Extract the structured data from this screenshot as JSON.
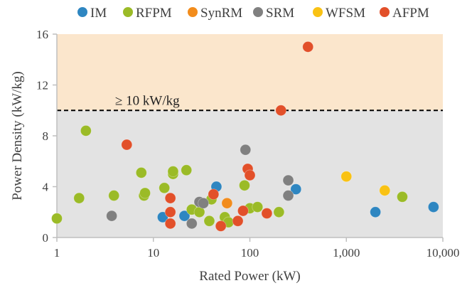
{
  "chart_data": {
    "type": "scatter",
    "xlabel": "Rated Power (kW)",
    "ylabel": "Power Density (kW/kg)",
    "x_scale": "log",
    "xlim": [
      1,
      10000
    ],
    "ylim": [
      0,
      16
    ],
    "x_ticks": [
      1,
      10,
      100,
      1000,
      10000
    ],
    "x_tick_labels": [
      "1",
      "10",
      "100",
      "1,000",
      "10,000"
    ],
    "y_ticks": [
      0,
      4,
      8,
      12,
      16
    ],
    "y_tick_labels": [
      "0",
      "4",
      "8",
      "12",
      "16"
    ],
    "grid": false,
    "legend_position": "top",
    "regions": [
      {
        "y_from": 10,
        "y_to": 16,
        "color": "#fbe6cc"
      },
      {
        "y_from": 0,
        "y_to": 10,
        "color": "#e3e3e3"
      }
    ],
    "threshold": {
      "y": 10,
      "label": "≥ 10 kW/kg",
      "style": "dashed",
      "color": "#000000"
    },
    "series": [
      {
        "name": "IM",
        "color": "#2e86c1",
        "points": [
          [
            12.5,
            1.6
          ],
          [
            21,
            1.7
          ],
          [
            45,
            4.0
          ],
          [
            300,
            3.8
          ],
          [
            2000,
            2.0
          ],
          [
            8000,
            2.4
          ]
        ]
      },
      {
        "name": "RFPM",
        "color": "#9bbb27",
        "points": [
          [
            1,
            1.5
          ],
          [
            1.7,
            3.1
          ],
          [
            2,
            8.4
          ],
          [
            3.9,
            3.3
          ],
          [
            7.5,
            5.1
          ],
          [
            8,
            3.3
          ],
          [
            8.2,
            3.5
          ],
          [
            13,
            3.9
          ],
          [
            16,
            5.0
          ],
          [
            16,
            5.2
          ],
          [
            22,
            5.3
          ],
          [
            25,
            2.2
          ],
          [
            30,
            2.0
          ],
          [
            38,
            1.3
          ],
          [
            40,
            3.0
          ],
          [
            55,
            1.6
          ],
          [
            60,
            1.2
          ],
          [
            88,
            4.1
          ],
          [
            100,
            2.3
          ],
          [
            120,
            2.4
          ],
          [
            200,
            2.0
          ],
          [
            3800,
            3.2
          ]
        ]
      },
      {
        "name": "SynRM",
        "color": "#f28c1c",
        "points": [
          [
            58,
            2.7
          ]
        ]
      },
      {
        "name": "SRM",
        "color": "#808080",
        "points": [
          [
            3.7,
            1.7
          ],
          [
            25,
            1.1
          ],
          [
            30,
            2.8
          ],
          [
            33,
            2.7
          ],
          [
            90,
            6.9
          ],
          [
            250,
            4.5
          ],
          [
            250,
            3.3
          ]
        ]
      },
      {
        "name": "WFSM",
        "color": "#f9c214",
        "points": [
          [
            1000,
            4.8
          ],
          [
            2500,
            3.7
          ]
        ]
      },
      {
        "name": "AFPM",
        "color": "#e2502a",
        "points": [
          [
            5.3,
            7.3
          ],
          [
            15,
            3.1
          ],
          [
            15,
            2.0
          ],
          [
            15,
            1.1
          ],
          [
            42,
            3.4
          ],
          [
            50,
            0.9
          ],
          [
            75,
            1.3
          ],
          [
            85,
            2.1
          ],
          [
            95,
            5.4
          ],
          [
            100,
            4.9
          ],
          [
            150,
            1.9
          ],
          [
            210,
            10.0
          ],
          [
            400,
            15.0
          ]
        ]
      }
    ]
  }
}
